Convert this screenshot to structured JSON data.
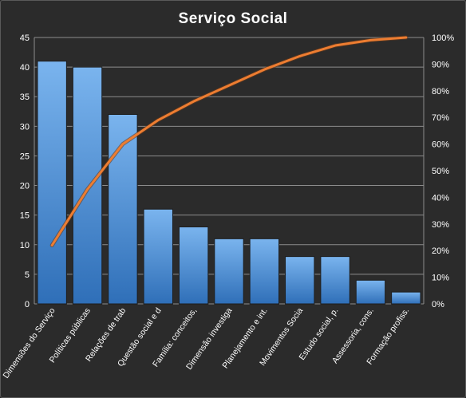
{
  "chart_data": {
    "type": "bar",
    "title": "Serviço  Social",
    "categories": [
      "Dimensões do Serviço",
      "Políticas públicas",
      "Relações de trab",
      "Questão social e d",
      "Família: conceitos,",
      "Dimensão investiga",
      "Planejamento e int.",
      "Movimentos Socia",
      "Estudo social, p.",
      "Assessoria, cons.",
      "Formação profiss."
    ],
    "series": [
      {
        "type": "bar",
        "axis": "left",
        "values": [
          41,
          40,
          32,
          16,
          13,
          11,
          11,
          8,
          8,
          4,
          2
        ]
      },
      {
        "type": "line",
        "axis": "right",
        "values": [
          22,
          43,
          60,
          69,
          76,
          82,
          88,
          93,
          97,
          99,
          100
        ]
      }
    ],
    "y_left": {
      "min": 0,
      "max": 45,
      "ticks": [
        0,
        5,
        10,
        15,
        20,
        25,
        30,
        35,
        40,
        45
      ]
    },
    "y_right": {
      "min": 0,
      "max": 100,
      "ticks": [
        "0%",
        "10%",
        "20%",
        "30%",
        "40%",
        "50%",
        "60%",
        "70%",
        "80%",
        "90%",
        "100%"
      ]
    },
    "grid": true,
    "legend": "none",
    "colors": {
      "bar": "#4a8fd8",
      "bar_light": "#7ab4ee",
      "bar_dark": "#2f6fb8",
      "line": "#ed7d31",
      "grid": "#8c8c8c",
      "background": "#2b2b2b",
      "text": "#ffffff"
    }
  }
}
